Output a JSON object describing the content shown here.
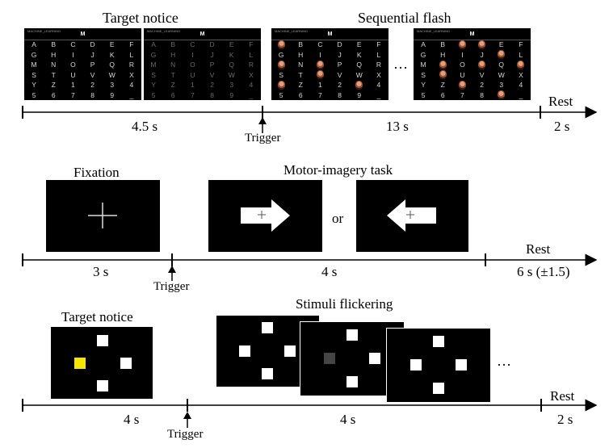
{
  "row1": {
    "target_notice_label": "Target notice",
    "sequential_flash_label": "Sequential flash",
    "speller_title": "MACHINE_LEARNING",
    "speller_target": "M",
    "speller_chars": [
      "A",
      "B",
      "C",
      "D",
      "E",
      "F",
      "G",
      "H",
      "I",
      "J",
      "K",
      "L",
      "M",
      "N",
      "O",
      "P",
      "Q",
      "R",
      "S",
      "T",
      "U",
      "V",
      "W",
      "X",
      "Y",
      "Z",
      "1",
      "2",
      "3",
      "4",
      "5",
      "6",
      "7",
      "8",
      "9",
      "_"
    ],
    "ellipsis": "…",
    "rest_label": "Rest",
    "d1": "4.5 s",
    "d2": "13 s",
    "d3": "2 s",
    "trigger": "Trigger"
  },
  "row2": {
    "fixation_label": "Fixation",
    "task_label": "Motor-imagery task",
    "or_label": "or",
    "rest_label": "Rest",
    "d1": "3 s",
    "d2": "4 s",
    "d3": "6 s (±1.5)",
    "trigger": "Trigger"
  },
  "row3": {
    "target_notice_label": "Target notice",
    "flicker_label": "Stimuli flickering",
    "ellipsis": "…",
    "rest_label": "Rest",
    "d1": "4 s",
    "d2": "4 s",
    "d3": "2 s",
    "trigger": "Trigger",
    "target_color": "#f5e600"
  }
}
